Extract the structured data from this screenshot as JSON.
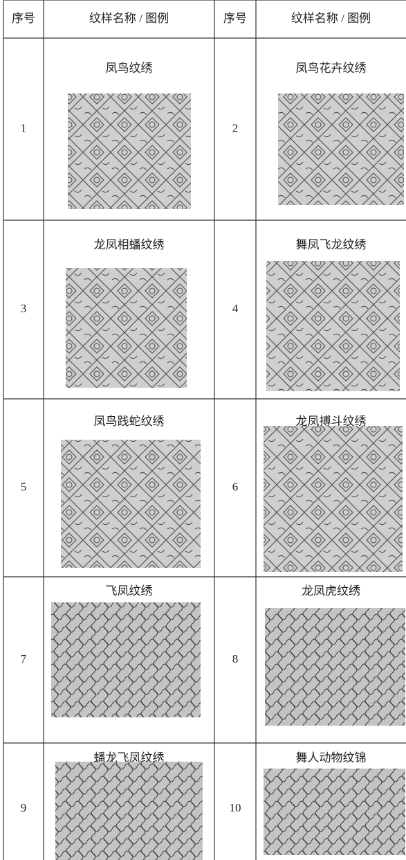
{
  "table": {
    "header": [
      "序号",
      "纹样名称 / 图例",
      "序号",
      "纹样名称 / 图例"
    ],
    "rows": [
      [
        {
          "number": "1",
          "name": "凤鸟纹绣"
        },
        {
          "number": "2",
          "name": "凤鸟花卉纹绣"
        }
      ],
      [
        {
          "number": "3",
          "name": "龙凤相蟠纹绣"
        },
        {
          "number": "4",
          "name": "舞凤飞龙纹绣"
        }
      ],
      [
        {
          "number": "5",
          "name": "凤鸟践蛇纹绣"
        },
        {
          "number": "6",
          "name": "龙凤搏斗纹绣"
        }
      ],
      [
        {
          "number": "7",
          "name": "飞凤纹绣"
        },
        {
          "number": "8",
          "name": "龙凤虎纹绣"
        }
      ],
      [
        {
          "number": "9",
          "name": "蟠龙飞凤纹绣"
        },
        {
          "number": "10",
          "name": "舞人动物纹锦"
        }
      ]
    ]
  }
}
